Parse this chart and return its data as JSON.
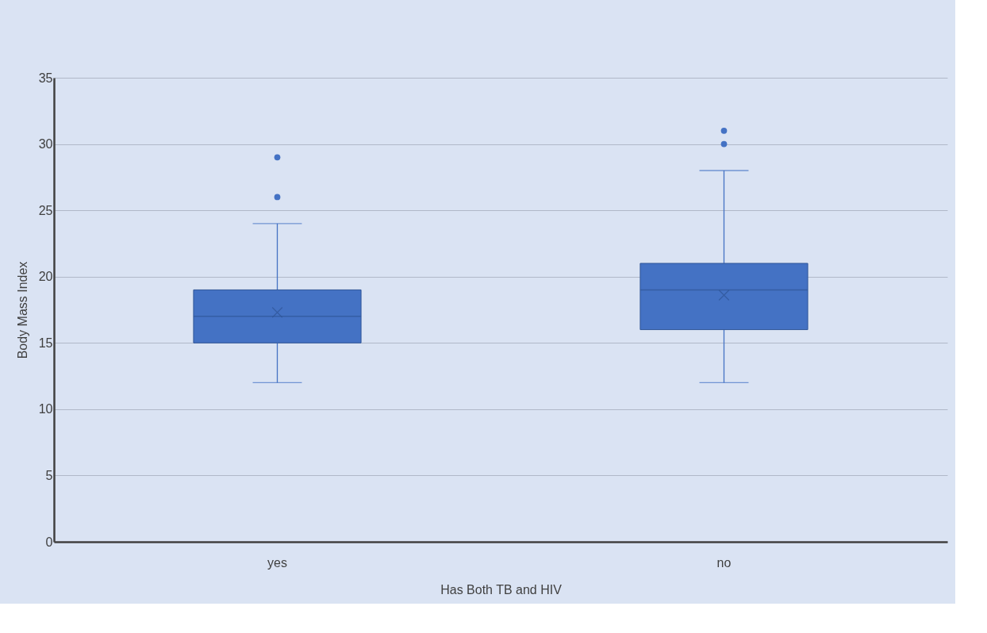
{
  "chart_data": {
    "type": "box",
    "xlabel": "Has Both TB and HIV",
    "ylabel": "Body Mass Index",
    "categories": [
      "yes",
      "no"
    ],
    "series": [
      {
        "color": "#4472c4",
        "boxes": [
          {
            "low": 12,
            "q1": 15,
            "median": 17,
            "q3": 19,
            "high": 24,
            "mean": 17.3,
            "outliers": [
              26,
              29
            ]
          },
          {
            "low": 12,
            "q1": 16,
            "median": 19,
            "q3": 21,
            "high": 28,
            "mean": 18.6,
            "outliers": [
              30,
              31
            ]
          }
        ]
      }
    ],
    "ylim": [
      0,
      35
    ],
    "yticks": [
      0,
      5,
      10,
      15,
      20,
      25,
      30,
      35
    ],
    "grid": "y"
  }
}
